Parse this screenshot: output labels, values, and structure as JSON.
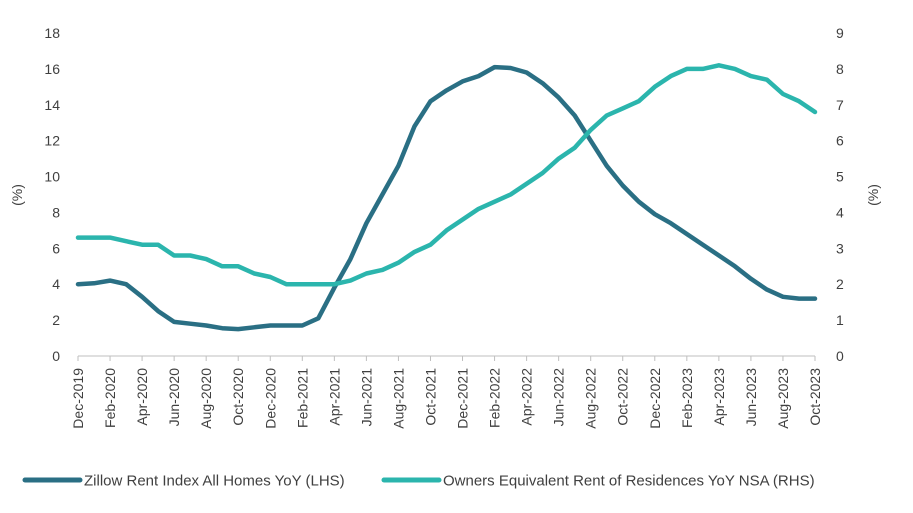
{
  "chart_data": {
    "type": "line",
    "title": "",
    "xlabel": "",
    "ylabel_left": "(%)",
    "ylabel_right": "(%)",
    "ylim_left": [
      0,
      18
    ],
    "ylim_right": [
      0,
      9
    ],
    "yticks_left": [
      "0",
      "2",
      "4",
      "6",
      "8",
      "10",
      "12",
      "14",
      "16",
      "18"
    ],
    "yticks_right": [
      "0",
      "1",
      "2",
      "3",
      "4",
      "5",
      "6",
      "7",
      "8",
      "9"
    ],
    "grid": false,
    "legend_position": "bottom",
    "x": [
      "Dec-2019",
      "Jan-2020",
      "Feb-2020",
      "Mar-2020",
      "Apr-2020",
      "May-2020",
      "Jun-2020",
      "Jul-2020",
      "Aug-2020",
      "Sep-2020",
      "Oct-2020",
      "Nov-2020",
      "Dec-2020",
      "Jan-2021",
      "Feb-2021",
      "Mar-2021",
      "Apr-2021",
      "May-2021",
      "Jun-2021",
      "Jul-2021",
      "Aug-2021",
      "Sep-2021",
      "Oct-2021",
      "Nov-2021",
      "Dec-2021",
      "Jan-2022",
      "Feb-2022",
      "Mar-2022",
      "Apr-2022",
      "May-2022",
      "Jun-2022",
      "Jul-2022",
      "Aug-2022",
      "Sep-2022",
      "Oct-2022",
      "Nov-2022",
      "Dec-2022",
      "Jan-2023",
      "Feb-2023",
      "Mar-2023",
      "Apr-2023",
      "May-2023",
      "Jun-2023",
      "Jul-2023",
      "Aug-2023",
      "Sep-2023",
      "Oct-2023"
    ],
    "x_tick_labels": [
      "Dec-2019",
      "Feb-2020",
      "Apr-2020",
      "Jun-2020",
      "Aug-2020",
      "Oct-2020",
      "Dec-2020",
      "Feb-2021",
      "Apr-2021",
      "Jun-2021",
      "Aug-2021",
      "Oct-2021",
      "Dec-2021",
      "Feb-2022",
      "Apr-2022",
      "Jun-2022",
      "Aug-2022",
      "Oct-2022",
      "Dec-2022",
      "Feb-2023",
      "Apr-2023",
      "Jun-2023",
      "Aug-2023",
      "Oct-2023"
    ],
    "series": [
      {
        "name": "Zillow Rent Index All Homes YoY (LHS)",
        "axis": "left",
        "color": "#2a6f84",
        "values": [
          4.0,
          4.05,
          4.2,
          4.0,
          3.3,
          2.5,
          1.9,
          1.8,
          1.7,
          1.55,
          1.5,
          1.6,
          1.7,
          1.7,
          1.7,
          2.1,
          3.8,
          5.4,
          7.4,
          9.0,
          10.6,
          12.8,
          14.2,
          14.8,
          15.3,
          15.6,
          16.1,
          16.05,
          15.8,
          15.2,
          14.4,
          13.4,
          12.0,
          10.6,
          9.5,
          8.6,
          7.9,
          7.4,
          6.8,
          6.2,
          5.6,
          5.0,
          4.3,
          3.7,
          3.3,
          3.2,
          3.2
        ]
      },
      {
        "name": "Owners Equivalent Rent of Residences YoY NSA (RHS)",
        "axis": "right",
        "color": "#2bb5ad",
        "values": [
          3.3,
          3.3,
          3.3,
          3.2,
          3.1,
          3.1,
          2.8,
          2.8,
          2.7,
          2.5,
          2.5,
          2.3,
          2.2,
          2.0,
          2.0,
          2.0,
          2.0,
          2.1,
          2.3,
          2.4,
          2.6,
          2.9,
          3.1,
          3.5,
          3.8,
          4.1,
          4.3,
          4.5,
          4.8,
          5.1,
          5.5,
          5.8,
          6.3,
          6.7,
          6.9,
          7.1,
          7.5,
          7.8,
          8.0,
          8.0,
          8.1,
          8.0,
          7.8,
          7.7,
          7.3,
          7.1,
          6.8
        ]
      }
    ]
  }
}
